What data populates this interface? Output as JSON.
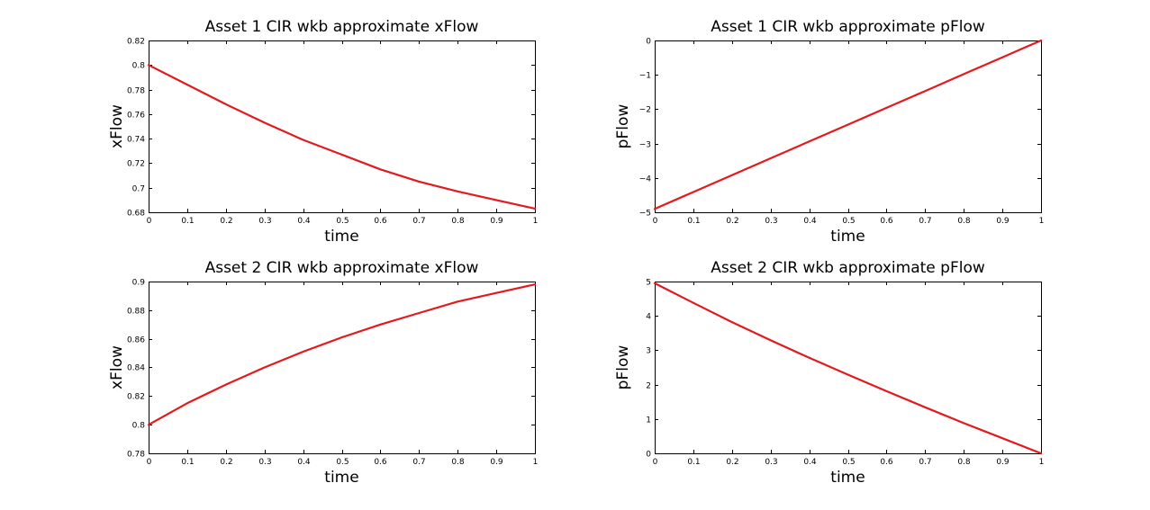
{
  "figure": {
    "background": "#ffffff",
    "line_color": "#e31a1c"
  },
  "chart_data": [
    {
      "type": "line",
      "title": "Asset 1 CIR wkb approximate xFlow",
      "xlabel": "time",
      "ylabel": "xFlow",
      "xlim": [
        0,
        1
      ],
      "ylim": [
        0.68,
        0.82
      ],
      "xticks": [
        "0",
        "0.1",
        "0.2",
        "0.3",
        "0.4",
        "0.5",
        "0.6",
        "0.7",
        "0.8",
        "0.9",
        "1"
      ],
      "yticks": [
        "0.68",
        "0.7",
        "0.72",
        "0.74",
        "0.76",
        "0.78",
        "0.8",
        "0.82"
      ],
      "grid": false,
      "series": [
        {
          "x": [
            0,
            0.1,
            0.2,
            0.3,
            0.4,
            0.5,
            0.6,
            0.7,
            0.8,
            0.9,
            1
          ],
          "values": [
            0.8,
            0.784,
            0.768,
            0.753,
            0.739,
            0.727,
            0.715,
            0.705,
            0.697,
            0.69,
            0.683
          ]
        }
      ]
    },
    {
      "type": "line",
      "title": "Asset 1 CIR wkb approximate pFlow",
      "xlabel": "time",
      "ylabel": "pFlow",
      "xlim": [
        0,
        1
      ],
      "ylim": [
        -5,
        0
      ],
      "xticks": [
        "0",
        "0.1",
        "0.2",
        "0.3",
        "0.4",
        "0.5",
        "0.6",
        "0.7",
        "0.8",
        "0.9",
        "1"
      ],
      "yticks": [
        "−5",
        "−4",
        "−3",
        "−2",
        "−1",
        "0"
      ],
      "grid": false,
      "series": [
        {
          "x": [
            0,
            0.1,
            0.2,
            0.3,
            0.4,
            0.5,
            0.6,
            0.7,
            0.8,
            0.9,
            1
          ],
          "values": [
            -4.9,
            -4.41,
            -3.92,
            -3.43,
            -2.94,
            -2.45,
            -1.96,
            -1.47,
            -0.98,
            -0.49,
            0
          ]
        }
      ]
    },
    {
      "type": "line",
      "title": "Asset 2 CIR wkb approximate xFlow",
      "xlabel": "time",
      "ylabel": "xFlow",
      "xlim": [
        0,
        1
      ],
      "ylim": [
        0.78,
        0.9
      ],
      "xticks": [
        "0",
        "0.1",
        "0.2",
        "0.3",
        "0.4",
        "0.5",
        "0.6",
        "0.7",
        "0.8",
        "0.9",
        "1"
      ],
      "yticks": [
        "0.78",
        "0.8",
        "0.82",
        "0.84",
        "0.86",
        "0.88",
        "0.9"
      ],
      "grid": false,
      "series": [
        {
          "x": [
            0,
            0.1,
            0.2,
            0.3,
            0.4,
            0.5,
            0.6,
            0.7,
            0.8,
            0.9,
            1
          ],
          "values": [
            0.8,
            0.815,
            0.828,
            0.84,
            0.851,
            0.861,
            0.87,
            0.878,
            0.886,
            0.892,
            0.898
          ]
        }
      ]
    },
    {
      "type": "line",
      "title": "Asset 2 CIR wkb approximate pFlow",
      "xlabel": "time",
      "ylabel": "pFlow",
      "xlim": [
        0,
        1
      ],
      "ylim": [
        0,
        5
      ],
      "xticks": [
        "0",
        "0.1",
        "0.2",
        "0.3",
        "0.4",
        "0.5",
        "0.6",
        "0.7",
        "0.8",
        "0.9",
        "1"
      ],
      "yticks": [
        "0",
        "1",
        "2",
        "3",
        "4",
        "5"
      ],
      "grid": false,
      "series": [
        {
          "x": [
            0,
            0.1,
            0.2,
            0.3,
            0.4,
            0.5,
            0.6,
            0.7,
            0.8,
            0.9,
            1
          ],
          "values": [
            4.95,
            4.38,
            3.82,
            3.29,
            2.78,
            2.29,
            1.81,
            1.34,
            0.88,
            0.44,
            0
          ]
        }
      ]
    }
  ]
}
